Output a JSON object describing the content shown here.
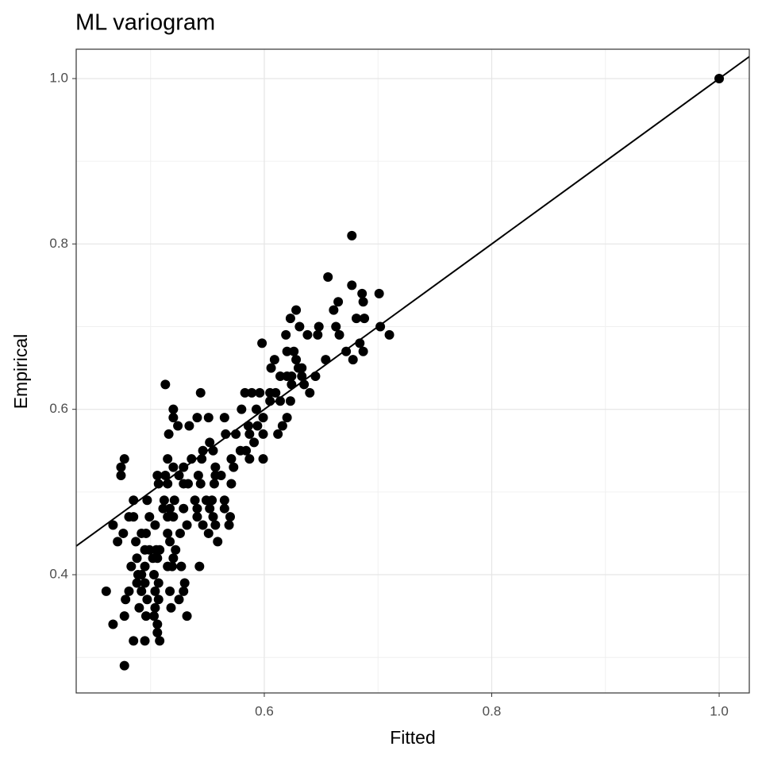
{
  "chart_data": {
    "type": "scatter",
    "title": "ML variogram",
    "x_label": "Fitted",
    "y_label": "Empirical",
    "x": [
      0.677,
      0.656,
      0.677,
      0.686,
      0.701,
      0.687,
      0.665,
      0.628,
      0.661,
      0.623,
      0.681,
      0.688,
      0.631,
      0.648,
      0.663,
      0.702,
      0.619,
      0.638,
      0.647,
      0.666,
      0.71,
      0.598,
      0.684,
      0.62,
      0.626,
      0.672,
      0.687,
      0.609,
      0.628,
      0.654,
      0.678,
      0.606,
      0.63,
      0.633,
      0.614,
      0.62,
      0.624,
      0.633,
      0.645,
      0.513,
      0.624,
      0.635,
      0.544,
      0.583,
      0.589,
      0.596,
      0.605,
      0.61,
      0.64,
      0.605,
      0.614,
      0.623,
      0.52,
      0.58,
      0.593,
      0.52,
      0.541,
      0.551,
      0.565,
      0.599,
      0.62,
      0.524,
      0.534,
      0.586,
      0.594,
      0.616,
      0.516,
      0.566,
      0.575,
      0.587,
      0.599,
      0.612,
      0.552,
      0.591,
      0.546,
      0.555,
      0.579,
      0.584,
      0.477,
      0.515,
      0.536,
      0.545,
      0.571,
      0.587,
      0.599,
      0.474,
      0.52,
      0.529,
      0.557,
      0.573,
      0.474,
      0.506,
      0.513,
      0.525,
      0.542,
      0.557,
      0.562,
      0.507,
      0.515,
      0.529,
      0.533,
      0.544,
      0.556,
      0.571,
      0.485,
      0.497,
      0.512,
      0.521,
      0.539,
      0.549,
      0.554,
      0.565,
      0.511,
      0.517,
      0.529,
      0.541,
      0.552,
      0.565,
      0.481,
      0.485,
      0.499,
      0.515,
      0.52,
      0.541,
      0.555,
      0.57,
      0.467,
      0.504,
      0.532,
      0.546,
      0.557,
      0.569,
      0.476,
      0.492,
      0.496,
      0.515,
      0.526,
      0.551,
      0.471,
      0.487,
      0.517,
      0.559,
      0.495,
      0.499,
      0.505,
      0.508,
      0.522,
      0.488,
      0.502,
      0.506,
      0.52,
      0.483,
      0.495,
      0.515,
      0.519,
      0.527,
      0.543,
      0.489,
      0.492,
      0.503,
      0.488,
      0.495,
      0.507,
      0.53,
      0.461,
      0.481,
      0.492,
      0.504,
      0.517,
      0.529,
      0.478,
      0.497,
      0.507,
      0.525,
      0.49,
      0.504,
      0.518,
      0.477,
      0.496,
      0.503,
      0.532,
      0.467,
      0.506,
      0.506,
      0.485,
      0.495,
      0.508,
      0.477,
      1.0
    ],
    "values": [
      0.81,
      0.76,
      0.75,
      0.74,
      0.74,
      0.73,
      0.73,
      0.72,
      0.72,
      0.71,
      0.71,
      0.71,
      0.7,
      0.7,
      0.7,
      0.7,
      0.69,
      0.69,
      0.69,
      0.69,
      0.69,
      0.68,
      0.68,
      0.67,
      0.67,
      0.67,
      0.67,
      0.66,
      0.66,
      0.66,
      0.66,
      0.65,
      0.65,
      0.65,
      0.64,
      0.64,
      0.64,
      0.64,
      0.64,
      0.63,
      0.63,
      0.63,
      0.62,
      0.62,
      0.62,
      0.62,
      0.62,
      0.62,
      0.62,
      0.61,
      0.61,
      0.61,
      0.6,
      0.6,
      0.6,
      0.59,
      0.59,
      0.59,
      0.59,
      0.59,
      0.59,
      0.58,
      0.58,
      0.58,
      0.58,
      0.58,
      0.57,
      0.57,
      0.57,
      0.57,
      0.57,
      0.57,
      0.56,
      0.56,
      0.55,
      0.55,
      0.55,
      0.55,
      0.54,
      0.54,
      0.54,
      0.54,
      0.54,
      0.54,
      0.54,
      0.53,
      0.53,
      0.53,
      0.53,
      0.53,
      0.52,
      0.52,
      0.52,
      0.52,
      0.52,
      0.52,
      0.52,
      0.51,
      0.51,
      0.51,
      0.51,
      0.51,
      0.51,
      0.51,
      0.49,
      0.49,
      0.49,
      0.49,
      0.49,
      0.49,
      0.49,
      0.49,
      0.48,
      0.48,
      0.48,
      0.48,
      0.48,
      0.48,
      0.47,
      0.47,
      0.47,
      0.47,
      0.47,
      0.47,
      0.47,
      0.47,
      0.46,
      0.46,
      0.46,
      0.46,
      0.46,
      0.46,
      0.45,
      0.45,
      0.45,
      0.45,
      0.45,
      0.45,
      0.44,
      0.44,
      0.44,
      0.44,
      0.43,
      0.43,
      0.43,
      0.43,
      0.43,
      0.42,
      0.42,
      0.42,
      0.42,
      0.41,
      0.41,
      0.41,
      0.41,
      0.41,
      0.41,
      0.4,
      0.4,
      0.4,
      0.39,
      0.39,
      0.39,
      0.39,
      0.38,
      0.38,
      0.38,
      0.38,
      0.38,
      0.38,
      0.37,
      0.37,
      0.37,
      0.37,
      0.36,
      0.36,
      0.36,
      0.35,
      0.35,
      0.35,
      0.35,
      0.34,
      0.34,
      0.33,
      0.32,
      0.32,
      0.32,
      0.29,
      1.0
    ],
    "color": "#000000",
    "reference_line": {
      "slope": 1,
      "intercept": 0,
      "color": "#000000"
    },
    "xlim": [
      0.4346,
      1.0265
    ],
    "ylim": [
      0.257,
      1.0355
    ],
    "xticks": [
      0.6,
      0.8,
      {
        "value": 1,
        "label": "1.0"
      }
    ],
    "yticks": [
      0.4,
      0.6,
      0.8,
      {
        "value": 1,
        "label": "1.0"
      }
    ],
    "minor_xticks": [
      0.5,
      0.7,
      0.9
    ],
    "minor_yticks": [
      0.3,
      0.5,
      0.7,
      0.9
    ],
    "grid": true
  }
}
